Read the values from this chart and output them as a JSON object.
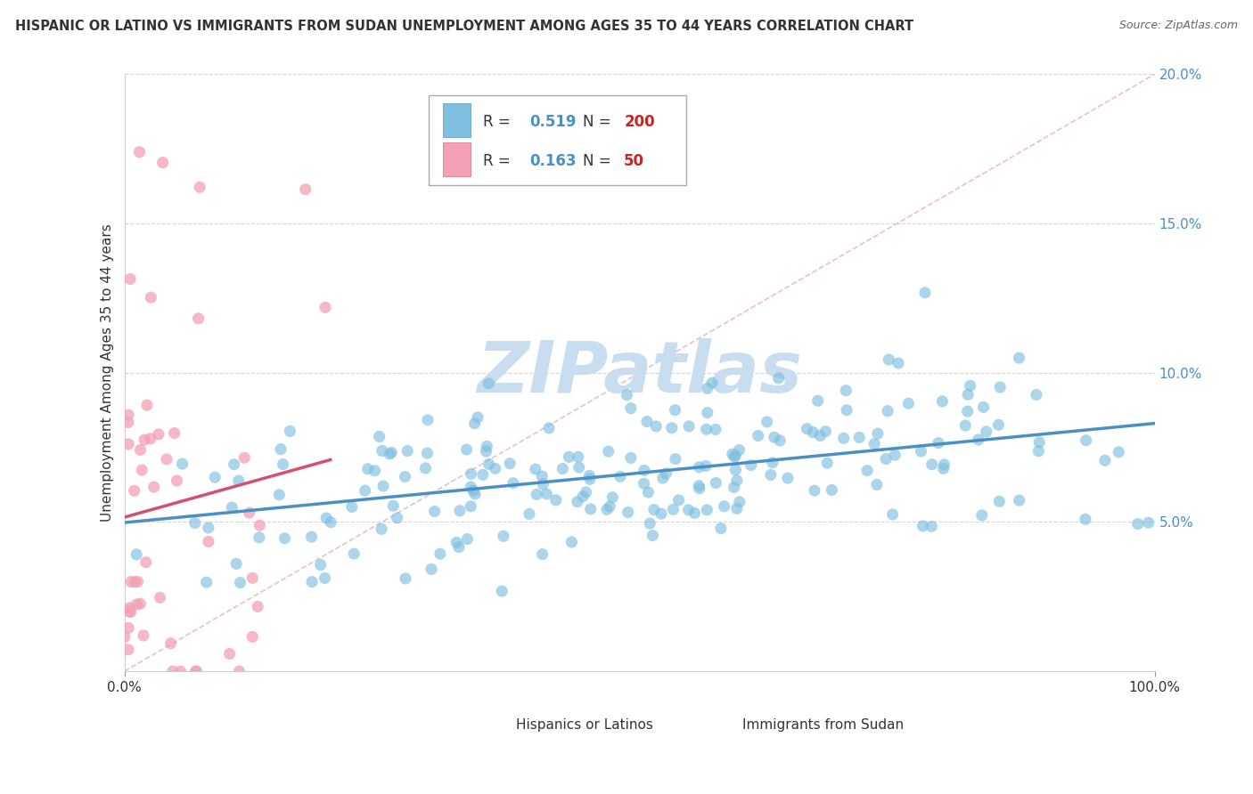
{
  "title": "HISPANIC OR LATINO VS IMMIGRANTS FROM SUDAN UNEMPLOYMENT AMONG AGES 35 TO 44 YEARS CORRELATION CHART",
  "source": "Source: ZipAtlas.com",
  "ylabel": "Unemployment Among Ages 35 to 44 years",
  "xlabel": "",
  "xlim": [
    0,
    1.0
  ],
  "ylim": [
    0,
    0.2
  ],
  "xticks": [
    0.0,
    1.0
  ],
  "yticks": [
    0.05,
    0.1,
    0.15,
    0.2
  ],
  "ytick_labels": [
    "5.0%",
    "10.0%",
    "15.0%",
    "20.0%"
  ],
  "xtick_labels": [
    "0.0%",
    "100.0%"
  ],
  "series1_color": "#7fbfdf",
  "series2_color": "#f4a0b5",
  "series1_label": "Hispanics or Latinos",
  "series2_label": "Immigrants from Sudan",
  "series1_R": 0.519,
  "series1_N": 200,
  "series2_R": 0.163,
  "series2_N": 50,
  "trend1_color": "#4a90c4",
  "trend2_color": "#d45070",
  "watermark": "ZIPatlas",
  "watermark_color": "#c8ddef",
  "background_color": "#ffffff",
  "grid_color": "#d5d5d5"
}
